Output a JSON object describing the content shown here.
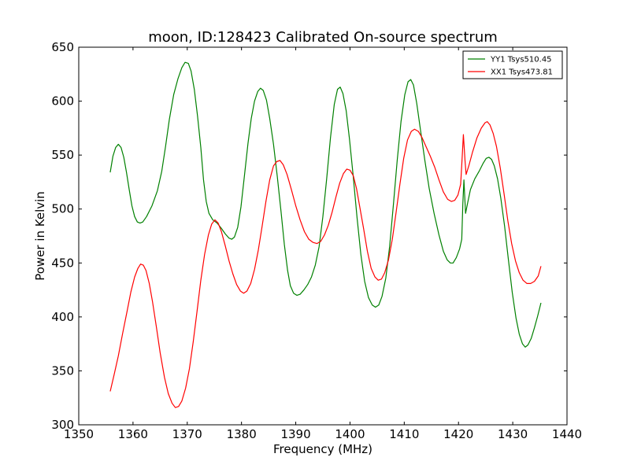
{
  "chart_data": {
    "type": "line",
    "title": "moon, ID:128423 Calibrated On-source spectrum",
    "xlabel": "Frequency (MHz)",
    "ylabel": "Power in Kelvin",
    "xlim": [
      1350,
      1440
    ],
    "ylim": [
      300,
      650
    ],
    "x_ticks": [
      1350,
      1360,
      1370,
      1380,
      1390,
      1400,
      1410,
      1420,
      1430,
      1440
    ],
    "y_ticks": [
      300,
      350,
      400,
      450,
      500,
      550,
      600,
      650
    ],
    "grid": false,
    "legend_position": "top-right",
    "series": [
      {
        "name": "YY1 Tsys510.45",
        "color": "#008000",
        "points": [
          [
            1355.8,
            534
          ],
          [
            1356.3,
            549
          ],
          [
            1356.8,
            557
          ],
          [
            1357.3,
            560
          ],
          [
            1357.8,
            557
          ],
          [
            1358.3,
            548
          ],
          [
            1358.8,
            534
          ],
          [
            1359.3,
            518
          ],
          [
            1359.8,
            503
          ],
          [
            1360.3,
            493
          ],
          [
            1360.8,
            488
          ],
          [
            1361.3,
            487
          ],
          [
            1361.8,
            488
          ],
          [
            1362.5,
            493
          ],
          [
            1363.5,
            503
          ],
          [
            1364.5,
            517
          ],
          [
            1365.3,
            535
          ],
          [
            1366.0,
            558
          ],
          [
            1366.7,
            583
          ],
          [
            1367.5,
            606
          ],
          [
            1368.3,
            621
          ],
          [
            1369.0,
            631
          ],
          [
            1369.6,
            636
          ],
          [
            1370.2,
            635
          ],
          [
            1370.7,
            628
          ],
          [
            1371.3,
            611
          ],
          [
            1371.9,
            586
          ],
          [
            1372.5,
            557
          ],
          [
            1373.0,
            527
          ],
          [
            1373.5,
            507
          ],
          [
            1374.0,
            496
          ],
          [
            1374.7,
            490
          ],
          [
            1375.5,
            487
          ],
          [
            1376.3,
            482
          ],
          [
            1377.0,
            477
          ],
          [
            1377.7,
            473
          ],
          [
            1378.2,
            472
          ],
          [
            1378.7,
            474
          ],
          [
            1379.3,
            483
          ],
          [
            1379.9,
            502
          ],
          [
            1380.5,
            529
          ],
          [
            1381.2,
            561
          ],
          [
            1381.8,
            584
          ],
          [
            1382.4,
            600
          ],
          [
            1383.0,
            609
          ],
          [
            1383.5,
            612
          ],
          [
            1384.0,
            610
          ],
          [
            1384.6,
            601
          ],
          [
            1385.2,
            584
          ],
          [
            1385.9,
            560
          ],
          [
            1386.6,
            530
          ],
          [
            1387.3,
            497
          ],
          [
            1387.9,
            467
          ],
          [
            1388.5,
            443
          ],
          [
            1389.0,
            429
          ],
          [
            1389.6,
            422
          ],
          [
            1390.2,
            420
          ],
          [
            1390.8,
            421
          ],
          [
            1391.5,
            425
          ],
          [
            1392.2,
            430
          ],
          [
            1392.9,
            437
          ],
          [
            1393.6,
            448
          ],
          [
            1394.3,
            465
          ],
          [
            1395.0,
            493
          ],
          [
            1395.7,
            528
          ],
          [
            1396.4,
            566
          ],
          [
            1397.1,
            597
          ],
          [
            1397.7,
            611
          ],
          [
            1398.2,
            613
          ],
          [
            1398.7,
            607
          ],
          [
            1399.3,
            591
          ],
          [
            1399.9,
            565
          ],
          [
            1400.6,
            530
          ],
          [
            1401.3,
            492
          ],
          [
            1402.0,
            458
          ],
          [
            1402.7,
            433
          ],
          [
            1403.4,
            418
          ],
          [
            1404.1,
            411
          ],
          [
            1404.7,
            409
          ],
          [
            1405.3,
            411
          ],
          [
            1405.9,
            419
          ],
          [
            1406.6,
            436
          ],
          [
            1407.3,
            465
          ],
          [
            1408.0,
            504
          ],
          [
            1408.7,
            545
          ],
          [
            1409.4,
            581
          ],
          [
            1410.1,
            606
          ],
          [
            1410.7,
            618
          ],
          [
            1411.2,
            620
          ],
          [
            1411.7,
            615
          ],
          [
            1412.3,
            598
          ],
          [
            1413.0,
            573
          ],
          [
            1413.8,
            545
          ],
          [
            1414.6,
            519
          ],
          [
            1415.5,
            496
          ],
          [
            1416.4,
            476
          ],
          [
            1417.2,
            461
          ],
          [
            1417.9,
            453
          ],
          [
            1418.5,
            450
          ],
          [
            1419.0,
            450
          ],
          [
            1419.6,
            455
          ],
          [
            1420.2,
            463
          ],
          [
            1420.6,
            472
          ],
          [
            1420.8,
            505
          ],
          [
            1421.0,
            527
          ],
          [
            1421.3,
            496
          ],
          [
            1421.7,
            506
          ],
          [
            1422.2,
            518
          ],
          [
            1423.0,
            528
          ],
          [
            1423.8,
            535
          ],
          [
            1424.5,
            542
          ],
          [
            1425.1,
            547
          ],
          [
            1425.6,
            548
          ],
          [
            1426.1,
            546
          ],
          [
            1426.6,
            540
          ],
          [
            1427.2,
            528
          ],
          [
            1427.8,
            510
          ],
          [
            1428.5,
            484
          ],
          [
            1429.2,
            453
          ],
          [
            1429.9,
            423
          ],
          [
            1430.6,
            399
          ],
          [
            1431.2,
            384
          ],
          [
            1431.8,
            375
          ],
          [
            1432.3,
            372
          ],
          [
            1432.8,
            374
          ],
          [
            1433.4,
            380
          ],
          [
            1434.0,
            390
          ],
          [
            1434.6,
            401
          ],
          [
            1435.2,
            413
          ]
        ]
      },
      {
        "name": "XX1 Tsys473.81",
        "color": "#ff0000",
        "points": [
          [
            1355.8,
            331
          ],
          [
            1356.5,
            346
          ],
          [
            1357.3,
            364
          ],
          [
            1358.1,
            385
          ],
          [
            1358.9,
            405
          ],
          [
            1359.6,
            423
          ],
          [
            1360.3,
            437
          ],
          [
            1360.9,
            445
          ],
          [
            1361.4,
            449
          ],
          [
            1361.9,
            448
          ],
          [
            1362.4,
            443
          ],
          [
            1363.0,
            431
          ],
          [
            1363.6,
            414
          ],
          [
            1364.3,
            391
          ],
          [
            1365.0,
            367
          ],
          [
            1365.8,
            344
          ],
          [
            1366.5,
            329
          ],
          [
            1367.2,
            320
          ],
          [
            1367.8,
            316
          ],
          [
            1368.4,
            317
          ],
          [
            1369.0,
            322
          ],
          [
            1369.7,
            334
          ],
          [
            1370.4,
            352
          ],
          [
            1371.1,
            377
          ],
          [
            1371.8,
            405
          ],
          [
            1372.5,
            434
          ],
          [
            1373.2,
            458
          ],
          [
            1373.9,
            476
          ],
          [
            1374.5,
            486
          ],
          [
            1375.1,
            490
          ],
          [
            1375.7,
            487
          ],
          [
            1376.3,
            479
          ],
          [
            1377.0,
            466
          ],
          [
            1377.7,
            452
          ],
          [
            1378.4,
            440
          ],
          [
            1379.1,
            430
          ],
          [
            1379.8,
            424
          ],
          [
            1380.4,
            422
          ],
          [
            1381.0,
            424
          ],
          [
            1381.7,
            431
          ],
          [
            1382.4,
            444
          ],
          [
            1383.1,
            462
          ],
          [
            1383.8,
            484
          ],
          [
            1384.5,
            507
          ],
          [
            1385.2,
            527
          ],
          [
            1385.9,
            540
          ],
          [
            1386.5,
            544
          ],
          [
            1387.1,
            545
          ],
          [
            1387.7,
            541
          ],
          [
            1388.4,
            532
          ],
          [
            1389.2,
            518
          ],
          [
            1390.0,
            503
          ],
          [
            1390.8,
            490
          ],
          [
            1391.6,
            479
          ],
          [
            1392.4,
            472
          ],
          [
            1393.2,
            469
          ],
          [
            1393.9,
            468
          ],
          [
            1394.6,
            470
          ],
          [
            1395.3,
            476
          ],
          [
            1396.0,
            485
          ],
          [
            1396.7,
            497
          ],
          [
            1397.4,
            511
          ],
          [
            1398.1,
            524
          ],
          [
            1398.8,
            533
          ],
          [
            1399.4,
            537
          ],
          [
            1400.0,
            536
          ],
          [
            1400.6,
            531
          ],
          [
            1401.2,
            519
          ],
          [
            1401.8,
            502
          ],
          [
            1402.5,
            482
          ],
          [
            1403.2,
            461
          ],
          [
            1403.9,
            445
          ],
          [
            1404.6,
            437
          ],
          [
            1405.2,
            434
          ],
          [
            1405.8,
            435
          ],
          [
            1406.4,
            441
          ],
          [
            1407.1,
            453
          ],
          [
            1407.8,
            472
          ],
          [
            1408.5,
            497
          ],
          [
            1409.2,
            523
          ],
          [
            1409.9,
            547
          ],
          [
            1410.6,
            564
          ],
          [
            1411.3,
            572
          ],
          [
            1411.9,
            574
          ],
          [
            1412.6,
            572
          ],
          [
            1413.3,
            566
          ],
          [
            1414.0,
            558
          ],
          [
            1414.8,
            549
          ],
          [
            1415.6,
            539
          ],
          [
            1416.4,
            527
          ],
          [
            1417.2,
            516
          ],
          [
            1418.0,
            509
          ],
          [
            1418.7,
            507
          ],
          [
            1419.3,
            508
          ],
          [
            1419.9,
            513
          ],
          [
            1420.4,
            523
          ],
          [
            1420.7,
            550
          ],
          [
            1420.9,
            569
          ],
          [
            1421.2,
            545
          ],
          [
            1421.4,
            532
          ],
          [
            1421.9,
            540
          ],
          [
            1422.6,
            553
          ],
          [
            1423.4,
            566
          ],
          [
            1424.2,
            575
          ],
          [
            1424.9,
            580
          ],
          [
            1425.3,
            581
          ],
          [
            1425.8,
            578
          ],
          [
            1426.4,
            570
          ],
          [
            1427.0,
            558
          ],
          [
            1427.7,
            538
          ],
          [
            1428.4,
            514
          ],
          [
            1429.1,
            489
          ],
          [
            1429.8,
            468
          ],
          [
            1430.5,
            452
          ],
          [
            1431.2,
            441
          ],
          [
            1431.9,
            434
          ],
          [
            1432.6,
            431
          ],
          [
            1433.3,
            431
          ],
          [
            1434.0,
            433
          ],
          [
            1434.7,
            438
          ],
          [
            1435.2,
            447
          ]
        ]
      }
    ]
  }
}
